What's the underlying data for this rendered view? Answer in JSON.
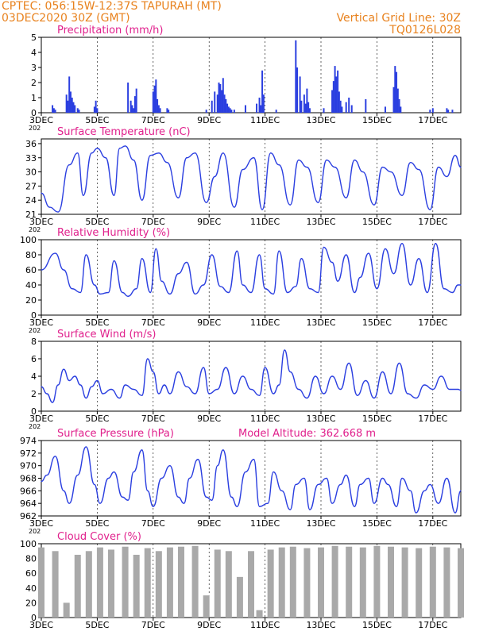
{
  "header": {
    "line1": "CPTEC:   056:15W-12:37S   TAPURAH (MT)",
    "line2": "03DEC2020 30Z (GMT)",
    "grid_note": "Vertical Grid Line: 30Z",
    "code": "TQ0126L028"
  },
  "colors": {
    "header": "#e8821e",
    "title": "#e0208c",
    "line": "#2b3fe0",
    "bar": "#2b3fe0",
    "cloud": "#a9a9a9",
    "frame": "#000000"
  },
  "x_axis": {
    "start_day": 3,
    "end_day": 18,
    "tick_days": [
      3,
      5,
      7,
      9,
      11,
      13,
      15,
      17
    ],
    "tick_labels": [
      "3DEC",
      "5DEC",
      "7DEC",
      "9DEC",
      "11DEC",
      "13DEC",
      "15DEC",
      "17DEC"
    ],
    "year_stub": "202"
  },
  "chart_data": [
    {
      "type": "bar",
      "title": "Precipitation (mm/h)",
      "ylim": [
        0,
        5
      ],
      "yticks": [
        0,
        1,
        2,
        3,
        4,
        5
      ],
      "ytick_labels": [
        "0",
        "1",
        "2",
        "3",
        "4",
        "5"
      ],
      "series": [
        {
          "x": [
            3.4,
            3.45,
            3.5,
            3.9,
            3.95,
            4.0,
            4.05,
            4.1,
            4.15,
            4.2,
            4.3,
            4.35,
            4.9,
            4.95,
            5.0,
            6.1,
            6.2,
            6.25,
            6.3,
            6.35,
            6.4,
            7.0,
            7.05,
            7.1,
            7.15,
            7.2,
            7.25,
            7.5,
            7.55,
            8.9,
            9.1,
            9.2,
            9.3,
            9.35,
            9.4,
            9.45,
            9.5,
            9.55,
            9.6,
            9.65,
            9.7,
            9.75,
            9.8,
            9.9,
            10.3,
            10.7,
            10.8,
            10.85,
            10.9,
            10.95,
            11.4,
            12.1,
            12.15,
            12.25,
            12.3,
            12.4,
            12.45,
            12.5,
            12.55,
            12.6,
            13.1,
            13.4,
            13.45,
            13.5,
            13.55,
            13.6,
            13.65,
            13.7,
            13.75,
            13.9,
            14.0,
            14.1,
            14.6,
            15.3,
            15.6,
            15.65,
            15.7,
            15.75,
            15.8,
            15.85,
            16.9,
            17.0,
            17.5,
            17.55,
            17.7
          ],
          "values": [
            0.5,
            0.3,
            0.2,
            1.2,
            0.8,
            2.4,
            1.4,
            1.0,
            0.7,
            0.5,
            0.3,
            0.2,
            0.4,
            0.8,
            0.3,
            2.0,
            0.8,
            0.5,
            0.3,
            1.1,
            1.6,
            1.4,
            1.8,
            2.2,
            0.9,
            0.5,
            0.3,
            0.3,
            0.2,
            0.2,
            0.8,
            1.4,
            1.2,
            2.0,
            1.9,
            1.5,
            2.3,
            1.2,
            0.9,
            0.6,
            0.4,
            0.3,
            0.2,
            0.2,
            0.5,
            0.6,
            1.0,
            0.5,
            2.8,
            1.2,
            0.2,
            4.8,
            3.0,
            2.4,
            0.8,
            1.2,
            0.6,
            1.6,
            0.7,
            0.3,
            0.3,
            1.5,
            2.1,
            3.1,
            2.4,
            2.8,
            1.4,
            0.8,
            0.4,
            0.7,
            1.0,
            0.5,
            0.9,
            0.4,
            1.7,
            3.1,
            2.7,
            1.6,
            0.9,
            0.4,
            0.2,
            0.3,
            0.3,
            0.2,
            0.2
          ]
        }
      ]
    },
    {
      "type": "line",
      "title": "Surface Temperature (nC)",
      "ylim": [
        21,
        37
      ],
      "yticks": [
        21,
        24,
        27,
        30,
        33,
        36
      ],
      "ytick_labels": [
        "21",
        "24",
        "27",
        "30",
        "33",
        "36"
      ],
      "series": [
        {
          "x": [
            3.0,
            3.3,
            3.6,
            4.0,
            4.3,
            4.5,
            4.8,
            5.0,
            5.3,
            5.6,
            5.8,
            6.0,
            6.3,
            6.6,
            6.9,
            7.2,
            7.5,
            7.9,
            8.2,
            8.5,
            8.9,
            9.2,
            9.5,
            9.9,
            10.2,
            10.6,
            10.9,
            11.2,
            11.5,
            11.9,
            12.2,
            12.5,
            12.9,
            13.2,
            13.5,
            13.9,
            14.2,
            14.5,
            14.9,
            15.2,
            15.5,
            15.9,
            16.2,
            16.5,
            16.9,
            17.2,
            17.5,
            17.8,
            18.0
          ],
          "values": [
            25.5,
            22.5,
            21.5,
            31.5,
            34.0,
            25.0,
            34.0,
            35.0,
            33.0,
            25.0,
            35.0,
            35.5,
            32.5,
            24.0,
            33.5,
            34.0,
            32.0,
            24.5,
            33.0,
            34.0,
            23.5,
            29.0,
            34.0,
            22.5,
            30.5,
            33.0,
            22.0,
            34.0,
            31.5,
            23.0,
            32.5,
            31.0,
            23.5,
            32.5,
            31.0,
            24.5,
            32.5,
            30.0,
            23.0,
            31.0,
            30.0,
            25.0,
            32.0,
            30.5,
            22.0,
            31.0,
            29.0,
            33.5,
            31.0
          ]
        }
      ]
    },
    {
      "type": "line",
      "title": "Relative Humidity (%)",
      "ylim": [
        0,
        100
      ],
      "yticks": [
        0,
        20,
        40,
        60,
        80,
        100
      ],
      "ytick_labels": [
        "0",
        "20",
        "40",
        "60",
        "80",
        "100"
      ],
      "series": [
        {
          "x": [
            3.0,
            3.5,
            3.8,
            4.1,
            4.4,
            4.6,
            4.9,
            5.1,
            5.4,
            5.6,
            5.9,
            6.1,
            6.4,
            6.6,
            6.9,
            7.1,
            7.3,
            7.6,
            7.9,
            8.2,
            8.5,
            8.8,
            9.1,
            9.4,
            9.7,
            10.0,
            10.2,
            10.5,
            10.8,
            11.0,
            11.3,
            11.5,
            11.8,
            12.1,
            12.3,
            12.6,
            12.9,
            13.1,
            13.4,
            13.6,
            13.9,
            14.2,
            14.4,
            14.7,
            15.0,
            15.3,
            15.6,
            15.9,
            16.2,
            16.5,
            16.8,
            17.1,
            17.4,
            17.7,
            17.9,
            18.0
          ],
          "values": [
            60,
            82,
            60,
            35,
            30,
            80,
            40,
            28,
            30,
            72,
            30,
            25,
            35,
            75,
            30,
            88,
            45,
            28,
            55,
            70,
            28,
            40,
            80,
            38,
            30,
            85,
            40,
            30,
            80,
            35,
            28,
            85,
            30,
            38,
            75,
            35,
            30,
            90,
            70,
            45,
            80,
            30,
            50,
            82,
            35,
            88,
            55,
            95,
            40,
            75,
            30,
            95,
            35,
            30,
            40,
            40
          ]
        }
      ]
    },
    {
      "type": "line",
      "title": "Surface Wind (m/s)",
      "ylim": [
        0,
        8
      ],
      "yticks": [
        0,
        2,
        4,
        6,
        8
      ],
      "ytick_labels": [
        "0",
        "2",
        "4",
        "6",
        "8"
      ],
      "series": [
        {
          "x": [
            3.0,
            3.2,
            3.4,
            3.6,
            3.8,
            4.0,
            4.2,
            4.4,
            4.6,
            4.8,
            5.0,
            5.2,
            5.5,
            5.8,
            6.0,
            6.3,
            6.6,
            6.8,
            7.0,
            7.2,
            7.4,
            7.6,
            7.9,
            8.2,
            8.5,
            8.8,
            9.0,
            9.3,
            9.6,
            9.9,
            10.2,
            10.5,
            10.8,
            11.0,
            11.3,
            11.5,
            11.7,
            11.9,
            12.2,
            12.5,
            12.8,
            13.1,
            13.4,
            13.7,
            14.0,
            14.3,
            14.6,
            14.9,
            15.2,
            15.5,
            15.8,
            16.1,
            16.4,
            16.7,
            17.0,
            17.3,
            17.6,
            17.9,
            18.0
          ],
          "values": [
            2.8,
            2.0,
            1.0,
            3.0,
            4.8,
            3.5,
            4.0,
            3.0,
            1.5,
            2.8,
            3.5,
            2.0,
            2.5,
            1.5,
            3.0,
            2.5,
            1.8,
            6.0,
            4.5,
            2.0,
            3.0,
            2.0,
            4.5,
            2.8,
            2.0,
            5.0,
            2.0,
            2.5,
            5.0,
            2.0,
            4.0,
            2.5,
            1.8,
            5.0,
            2.0,
            3.0,
            7.0,
            4.5,
            2.5,
            1.5,
            4.0,
            2.0,
            4.0,
            2.5,
            5.5,
            1.8,
            3.5,
            1.5,
            4.5,
            2.0,
            5.5,
            2.0,
            1.5,
            3.0,
            2.5,
            4.0,
            2.5,
            2.5,
            2.4
          ]
        }
      ]
    },
    {
      "type": "line",
      "title": "Surface Pressure (hPa)",
      "annotation": "Model Altitude: 362.668 m",
      "ylim": [
        962,
        974
      ],
      "yticks": [
        962,
        964,
        966,
        968,
        970,
        972,
        974
      ],
      "ytick_labels": [
        "962",
        "964",
        "966",
        "968",
        "970",
        "972",
        "974"
      ],
      "series": [
        {
          "x": [
            3.0,
            3.2,
            3.5,
            3.8,
            4.0,
            4.3,
            4.6,
            4.9,
            5.1,
            5.4,
            5.6,
            5.9,
            6.1,
            6.3,
            6.6,
            6.8,
            7.0,
            7.3,
            7.6,
            7.9,
            8.1,
            8.3,
            8.6,
            8.9,
            9.1,
            9.3,
            9.5,
            9.8,
            10.0,
            10.3,
            10.6,
            10.8,
            11.1,
            11.3,
            11.6,
            11.9,
            12.1,
            12.4,
            12.6,
            12.9,
            13.2,
            13.4,
            13.7,
            13.9,
            14.2,
            14.4,
            14.7,
            14.9,
            15.2,
            15.4,
            15.7,
            15.9,
            16.2,
            16.4,
            16.7,
            16.9,
            17.2,
            17.5,
            17.8,
            18.0
          ],
          "values": [
            967.5,
            968.5,
            971.5,
            966,
            964,
            968.5,
            973,
            967,
            964,
            968,
            969,
            965,
            964.5,
            969,
            972.5,
            966,
            963.5,
            968,
            970,
            965,
            964,
            968,
            971,
            965,
            964.5,
            970,
            972.5,
            965,
            963.5,
            969,
            971,
            963.5,
            964,
            969,
            966,
            963,
            967,
            968,
            963,
            967,
            968,
            964,
            967,
            968.5,
            963.5,
            967,
            968,
            964,
            968,
            967,
            963.5,
            968,
            966,
            962.5,
            966,
            967,
            964,
            968,
            962.5,
            966
          ]
        }
      ]
    },
    {
      "type": "bar",
      "title": "Cloud Cover (%)",
      "ylim": [
        0,
        100
      ],
      "yticks": [
        0,
        20,
        40,
        60,
        80,
        100
      ],
      "ytick_labels": [
        "0",
        "20",
        "40",
        "60",
        "80",
        "100"
      ],
      "series": [
        {
          "x": [
            3.0,
            3.5,
            3.9,
            4.3,
            4.7,
            5.1,
            5.5,
            6.0,
            6.4,
            6.8,
            7.2,
            7.6,
            8.0,
            8.5,
            8.9,
            9.3,
            9.7,
            10.1,
            10.5,
            10.8,
            11.2,
            11.6,
            12.0,
            12.5,
            13.0,
            13.5,
            14.0,
            14.5,
            15.0,
            15.5,
            16.0,
            16.5,
            17.0,
            17.5,
            18.0
          ],
          "values": [
            95,
            90,
            20,
            85,
            90,
            95,
            92,
            96,
            85,
            94,
            90,
            95,
            96,
            97,
            30,
            92,
            90,
            55,
            90,
            10,
            92,
            95,
            96,
            94,
            95,
            97,
            96,
            95,
            97,
            96,
            95,
            94,
            96,
            95,
            94
          ]
        }
      ]
    }
  ]
}
